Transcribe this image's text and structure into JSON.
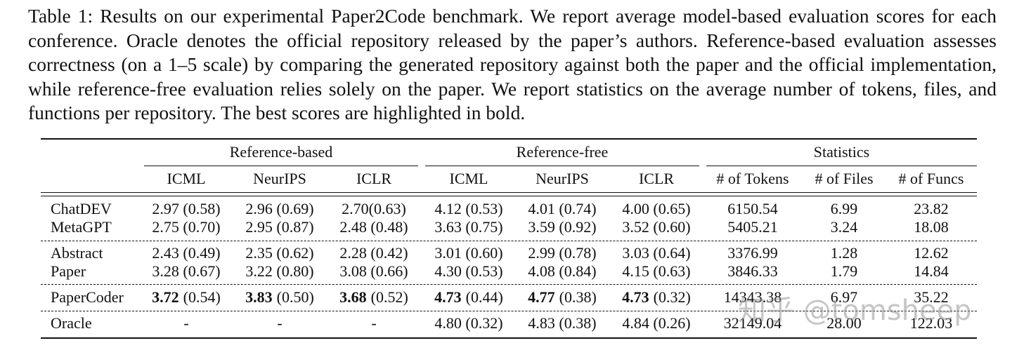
{
  "caption": "Table 1: Results on our experimental Paper2Code benchmark. We report average model-based evaluation scores for each conference. Oracle denotes the official repository released by the paper’s authors. Reference-based evaluation assesses correctness (on a 1–5 scale) by comparing the generated repository against both the paper and the official implementation, while reference-free evaluation relies solely on the paper. We report statistics on the average number of tokens, files, and functions per repository. The best scores are highlighted in bold.",
  "table": {
    "groups": [
      "Reference-based",
      "Reference-free",
      "Statistics"
    ],
    "columns": [
      "ICML",
      "NeurIPS",
      "ICLR",
      "ICML",
      "NeurIPS",
      "ICLR",
      "# of Tokens",
      "# of Files",
      "# of Funcs"
    ],
    "sections": [
      {
        "rows": [
          {
            "label": "ChatDEV",
            "cells": [
              "2.97 (0.58)",
              "2.96 (0.69)",
              "2.70(0.63)",
              "4.12 (0.53)",
              "4.01 (0.74)",
              "4.00 (0.65)",
              "6150.54",
              "6.99",
              "23.82"
            ]
          },
          {
            "label": "MetaGPT",
            "cells": [
              "2.75 (0.70)",
              "2.95 (0.87)",
              "2.48 (0.48)",
              "3.63 (0.75)",
              "3.59 (0.92)",
              "3.52 (0.60)",
              "5405.21",
              "3.24",
              "18.08"
            ]
          }
        ]
      },
      {
        "rows": [
          {
            "label": "Abstract",
            "cells": [
              "2.43 (0.49)",
              "2.35 (0.62)",
              "2.28 (0.42)",
              "3.01 (0.60)",
              "2.99 (0.78)",
              "3.03 (0.64)",
              "3376.99",
              "1.28",
              "12.62"
            ]
          },
          {
            "label": "Paper",
            "cells": [
              "3.28 (0.67)",
              "3.22 (0.80)",
              "3.08 (0.66)",
              "4.30 (0.53)",
              "4.08 (0.84)",
              "4.15 (0.63)",
              "3846.33",
              "1.79",
              "14.84"
            ]
          }
        ]
      },
      {
        "rows": [
          {
            "label": "PaperCoder",
            "cells": [
              {
                "bold": "3.72",
                "rest": "(0.54)"
              },
              {
                "bold": "3.83",
                "rest": "(0.50)"
              },
              {
                "bold": "3.68",
                "rest": "(0.52)"
              },
              {
                "bold": "4.73",
                "rest": "(0.44)"
              },
              {
                "bold": "4.77",
                "rest": "(0.38)"
              },
              {
                "bold": "4.73",
                "rest": "(0.32)"
              },
              "14343.38",
              "6.97",
              "35.22"
            ]
          }
        ]
      },
      {
        "rows": [
          {
            "label": "Oracle",
            "cells": [
              "-",
              "-",
              "-",
              "4.80 (0.32)",
              "4.83 (0.38)",
              "4.84 (0.26)",
              "32149.04",
              "28.00",
              "122.03"
            ]
          }
        ]
      }
    ]
  },
  "watermark": "知乎 @tomsheep"
}
